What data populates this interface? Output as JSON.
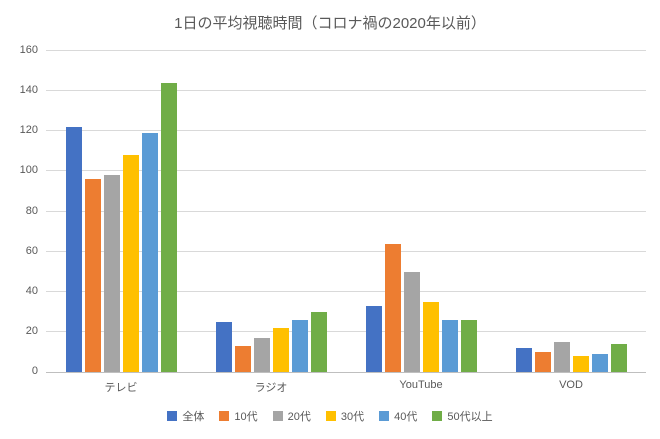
{
  "chart_data": {
    "type": "bar",
    "title": "1日の平均視聴時間（コロナ禍の2020年以前）",
    "categories": [
      "テレビ",
      "ラジオ",
      "YouTube",
      "VOD"
    ],
    "series": [
      {
        "name": "全体",
        "color": "#4472C4",
        "values": [
          122,
          25,
          33,
          12
        ]
      },
      {
        "name": "10代",
        "color": "#ED7D31",
        "values": [
          96,
          13,
          64,
          10
        ]
      },
      {
        "name": "20代",
        "color": "#A5A5A5",
        "values": [
          98,
          17,
          50,
          15
        ]
      },
      {
        "name": "30代",
        "color": "#FFC000",
        "values": [
          108,
          22,
          35,
          8
        ]
      },
      {
        "name": "40代",
        "color": "#5B9BD5",
        "values": [
          119,
          26,
          26,
          9
        ]
      },
      {
        "name": "50代以上",
        "color": "#70AD47",
        "values": [
          144,
          30,
          26,
          14
        ]
      }
    ],
    "ylim": [
      0,
      160
    ],
    "ytick_step": 20,
    "grid": true,
    "legend_position": "bottom",
    "background_color": "#FFFFFF",
    "text_color": "#595959",
    "gridline_color": "#D9D9D9",
    "axis_line_color": "#BFBFBF"
  }
}
